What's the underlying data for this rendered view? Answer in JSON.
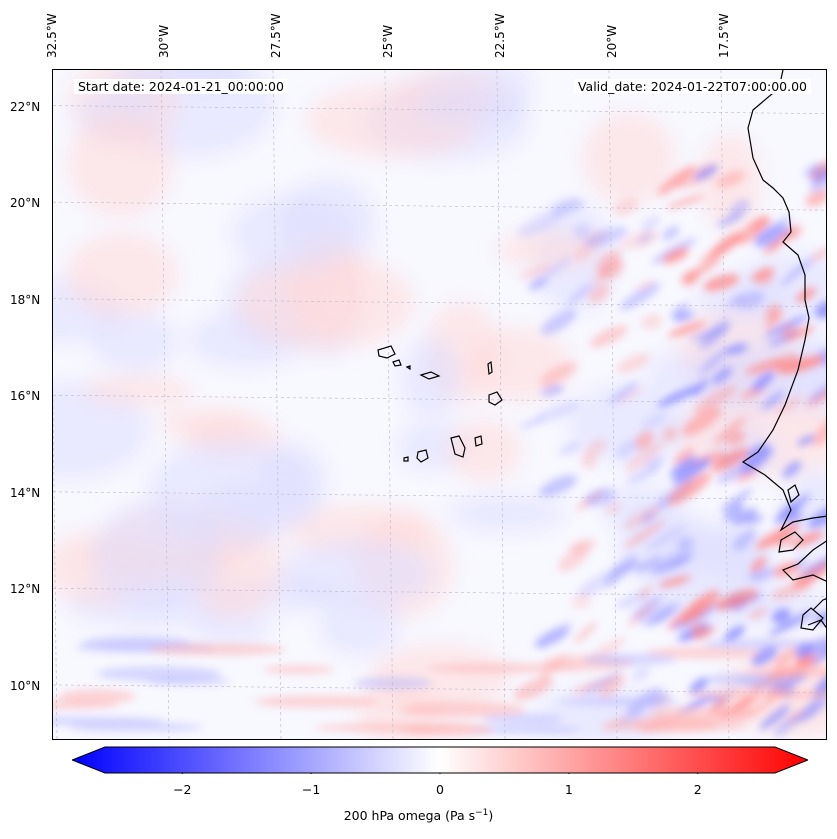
{
  "map": {
    "start_date": "Start date: 2024-01-21_00:00:00",
    "valid_date": "Valid_date: 2024-01-22T07:00:00.00",
    "lon_labels": [
      "32.5°W",
      "30°W",
      "27.5°W",
      "25°W",
      "22.5°W",
      "20°W",
      "17.5°W"
    ],
    "lat_labels": [
      "22°N",
      "20°N",
      "18°N",
      "16°N",
      "14°N",
      "12°N",
      "10°N"
    ],
    "lon_values": [
      -32.5,
      -30,
      -27.5,
      -25,
      -22.5,
      -20,
      -17.5
    ],
    "lat_values": [
      22,
      20,
      18,
      16,
      14,
      12,
      10
    ],
    "extent": {
      "lon_min": -32.5,
      "lon_max": -15.2,
      "lat_min": 8.9,
      "lat_max": 22.8
    }
  },
  "colorbar": {
    "label": "200 hPa omega (Pa s",
    "label_unit_sup": "−1",
    "label_close": ")",
    "ticks": [
      "−2",
      "−1",
      "0",
      "1",
      "2"
    ],
    "tick_values": [
      -2,
      -1,
      0,
      1,
      2
    ],
    "range": [
      -2.6,
      2.6
    ],
    "color_min": "#0000ff",
    "color_mid": "#ffffff",
    "color_max": "#ff0000"
  }
}
